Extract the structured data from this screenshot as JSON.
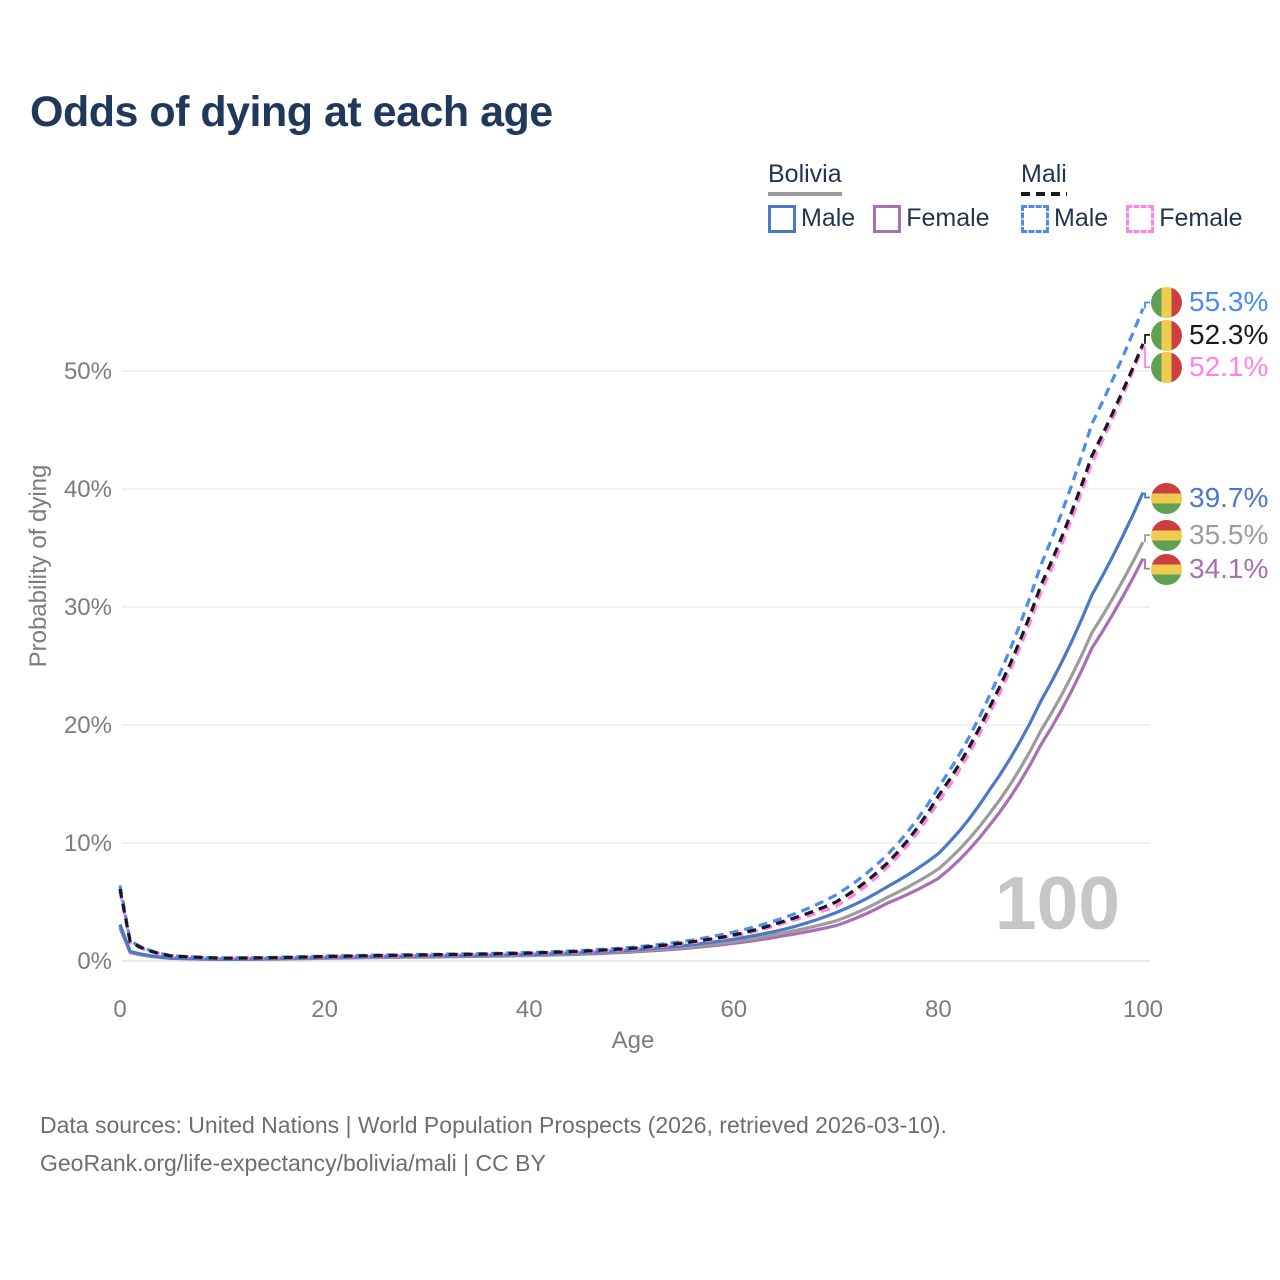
{
  "title": "Odds of dying at each age",
  "watermark_age_label": "100",
  "colors": {
    "title": "#20395a",
    "legend_text": "#22364e",
    "axis_text": "#7c7c7c",
    "gridline": "#ededed",
    "baseline": "#e2e2e2",
    "footer_text": "#6e6e6e",
    "watermark": "#c6c6c6"
  },
  "legend": {
    "groups": [
      {
        "label": "Bolivia",
        "line_style": "solid",
        "underline_color": "#9c9c9c",
        "items": [
          {
            "label": "Male",
            "color": "#4b79c5"
          },
          {
            "label": "Female",
            "color": "#a86fb4"
          }
        ]
      },
      {
        "label": "Mali",
        "line_style": "dashed",
        "underline_color": "#191919",
        "items": [
          {
            "label": "Male",
            "color": "#4d8bf0"
          },
          {
            "label": "Female",
            "color": "#ff82ea"
          }
        ]
      }
    ]
  },
  "flags": {
    "mali": {
      "orientation": "vertical",
      "colors": [
        "#5fa052",
        "#efcb4f",
        "#cd3f3f"
      ]
    },
    "bolivia": {
      "orientation": "horizontal",
      "colors": [
        "#cd3f3f",
        "#efcb4f",
        "#5fa052"
      ]
    }
  },
  "chart_data": {
    "type": "line",
    "title": "Odds of dying at each age",
    "xlabel": "Age",
    "ylabel": "Probability of dying",
    "xlim": [
      0,
      100
    ],
    "ylim": [
      0,
      57
    ],
    "xticks": [
      0,
      20,
      40,
      60,
      80,
      100
    ],
    "xtick_labels": [
      "0",
      "20",
      "40",
      "60",
      "80",
      "100"
    ],
    "yticks": [
      0,
      10,
      20,
      30,
      40,
      50
    ],
    "ytick_labels": [
      "0%",
      "10%",
      "20%",
      "30%",
      "40%",
      "50%"
    ],
    "grid": "horizontal",
    "legend_position": "top-right",
    "ages": [
      0,
      1,
      5,
      10,
      15,
      20,
      25,
      30,
      35,
      40,
      45,
      50,
      55,
      60,
      65,
      70,
      75,
      80,
      85,
      90,
      95,
      100
    ],
    "series": [
      {
        "id": "bolivia-female",
        "country": "Bolivia",
        "sex": "Female",
        "color": "#a86fb4",
        "line_style": "solid",
        "flag": "bolivia",
        "end_label": "34.1%",
        "end_value": 34.1,
        "label_dy": 10,
        "values": [
          2.8,
          0.7,
          0.22,
          0.13,
          0.16,
          0.23,
          0.29,
          0.34,
          0.39,
          0.46,
          0.57,
          0.76,
          1.05,
          1.5,
          2.15,
          3.0,
          4.9,
          7.0,
          11.5,
          18.3,
          26.5,
          34.1
        ]
      },
      {
        "id": "bolivia-both",
        "country": "Bolivia",
        "sex": "Both sexes",
        "color": "#9c9c9c",
        "line_style": "solid",
        "flag": "bolivia",
        "end_label": "35.5%",
        "end_value": 35.5,
        "label_dy": -7,
        "values": [
          3.0,
          0.75,
          0.24,
          0.14,
          0.18,
          0.26,
          0.33,
          0.38,
          0.43,
          0.5,
          0.63,
          0.83,
          1.15,
          1.65,
          2.4,
          3.4,
          5.4,
          7.8,
          12.5,
          19.5,
          27.8,
          35.5
        ]
      },
      {
        "id": "bolivia-male",
        "country": "Bolivia",
        "sex": "Male",
        "color": "#4b79c5",
        "line_style": "solid",
        "flag": "bolivia",
        "end_label": "39.7%",
        "end_value": 39.7,
        "label_dy": 5,
        "values": [
          3.1,
          0.8,
          0.25,
          0.15,
          0.2,
          0.3,
          0.38,
          0.43,
          0.48,
          0.56,
          0.7,
          0.92,
          1.3,
          1.85,
          2.7,
          4.1,
          6.3,
          9.1,
          14.5,
          22.0,
          31.0,
          39.7
        ]
      },
      {
        "id": "mali-male",
        "country": "Mali",
        "sex": "Male",
        "color": "#4d8bf0",
        "line_style": "dashed",
        "flag": "mali",
        "end_label": "55.3%",
        "end_value": 55.3,
        "label_dy": -6,
        "values": [
          6.4,
          1.7,
          0.45,
          0.25,
          0.3,
          0.42,
          0.5,
          0.56,
          0.62,
          0.72,
          0.88,
          1.15,
          1.65,
          2.45,
          3.7,
          5.6,
          9.0,
          14.7,
          22.5,
          33.5,
          45.5,
          55.3
        ]
      },
      {
        "id": "mali-female",
        "country": "Mali",
        "sex": "Female",
        "color": "#ff82ea",
        "line_style": "dashed",
        "flag": "mali",
        "end_label": "52.1%",
        "end_value": 52.1,
        "label_dy": 21,
        "values": [
          5.9,
          1.55,
          0.42,
          0.23,
          0.26,
          0.35,
          0.43,
          0.49,
          0.55,
          0.63,
          0.77,
          1.0,
          1.45,
          2.1,
          3.25,
          4.65,
          7.95,
          13.5,
          21.0,
          31.2,
          42.2,
          52.1
        ]
      },
      {
        "id": "mali-both",
        "country": "Mali",
        "sex": "Both sexes",
        "color": "#191919",
        "line_style": "dashed",
        "flag": "mali",
        "end_label": "52.3%",
        "end_value": 52.3,
        "label_dy": -9,
        "values": [
          6.1,
          1.62,
          0.43,
          0.24,
          0.28,
          0.38,
          0.46,
          0.52,
          0.58,
          0.67,
          0.82,
          1.07,
          1.52,
          2.2,
          3.4,
          5.0,
          8.3,
          14.0,
          21.5,
          31.8,
          42.8,
          52.3
        ]
      }
    ]
  },
  "footer": {
    "line1": "Data sources: United Nations | World Population Prospects (2026, retrieved 2026-03-10).",
    "line2": "GeoRank.org/life-expectancy/bolivia/mali | CC BY"
  }
}
